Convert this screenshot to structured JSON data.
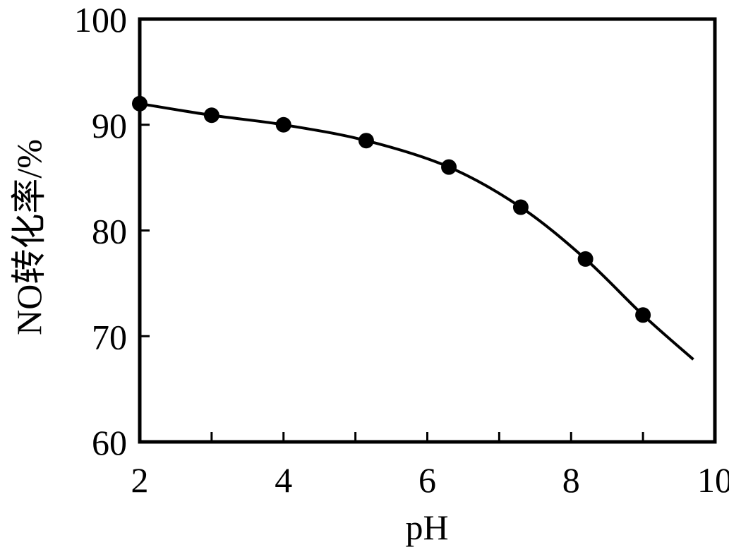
{
  "chart_data": {
    "type": "line",
    "xlabel": "pH",
    "ylabel": "NO转化率/%",
    "xlim": [
      2,
      10
    ],
    "ylim": [
      60,
      100
    ],
    "x_ticks": [
      2,
      3,
      4,
      5,
      6,
      7,
      8,
      9,
      10
    ],
    "x_tick_labels": [
      "2",
      "4",
      "6",
      "8",
      "10"
    ],
    "y_ticks": [
      60,
      70,
      80,
      90,
      100
    ],
    "y_tick_labels": [
      "60",
      "70",
      "80",
      "90",
      "100"
    ],
    "grid": false,
    "series": [
      {
        "markers": true,
        "points": [
          {
            "x": 2.0,
            "y": 92.0
          },
          {
            "x": 3.0,
            "y": 90.9
          },
          {
            "x": 4.0,
            "y": 90.0
          },
          {
            "x": 5.15,
            "y": 88.5
          },
          {
            "x": 6.3,
            "y": 86.0
          },
          {
            "x": 7.3,
            "y": 82.2
          },
          {
            "x": 8.2,
            "y": 77.3
          },
          {
            "x": 9.0,
            "y": 72.0
          }
        ],
        "curve_end": {
          "x": 9.7,
          "y": 67.8
        }
      }
    ]
  }
}
